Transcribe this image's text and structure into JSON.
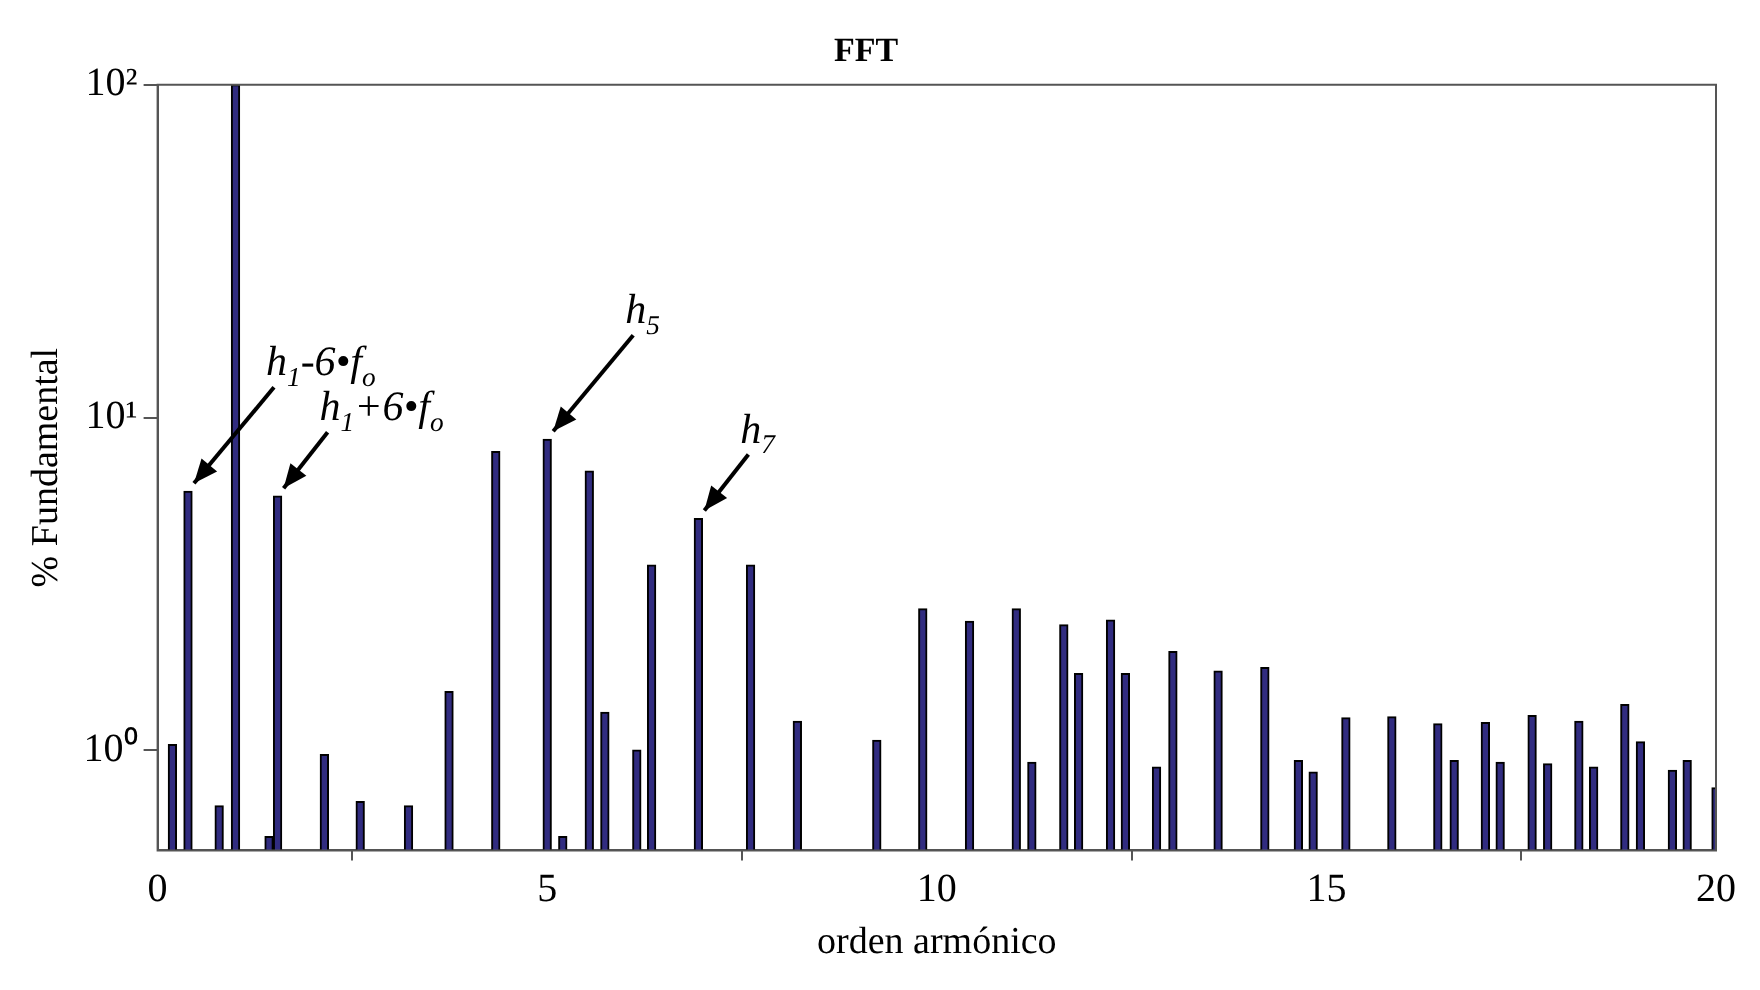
{
  "chart_data": {
    "type": "bar",
    "title": "FFT",
    "xlabel": "orden armónico",
    "ylabel": "% Fundamental",
    "x": [
      0.19,
      0.39,
      0.79,
      1.0,
      1.43,
      1.54,
      2.14,
      2.6,
      3.22,
      3.74,
      4.34,
      5.0,
      5.2,
      5.54,
      5.74,
      6.15,
      6.34,
      6.94,
      7.61,
      8.21,
      9.23,
      9.82,
      10.42,
      11.02,
      11.22,
      11.63,
      11.82,
      12.23,
      12.42,
      12.82,
      13.03,
      13.61,
      14.21,
      14.64,
      14.83,
      15.25,
      15.84,
      16.43,
      16.64,
      17.04,
      17.23,
      17.64,
      17.84,
      18.24,
      18.43,
      18.83,
      19.03,
      19.44,
      19.63,
      20
    ],
    "values": [
      1.04,
      6.0,
      0.68,
      100,
      0.55,
      5.8,
      0.97,
      0.7,
      0.68,
      1.5,
      7.9,
      8.6,
      0.55,
      6.9,
      1.3,
      1.0,
      3.6,
      4.97,
      3.6,
      1.22,
      1.07,
      2.66,
      2.44,
      2.66,
      0.92,
      2.38,
      1.7,
      2.46,
      1.7,
      0.89,
      1.98,
      1.73,
      1.77,
      0.93,
      0.86,
      1.25,
      1.26,
      1.2,
      0.93,
      1.21,
      0.92,
      1.27,
      0.91,
      1.22,
      0.89,
      1.37,
      1.06,
      0.87,
      0.93,
      0.77
    ],
    "color": "#312c80",
    "log": true,
    "grid": false,
    "xlim": [
      0,
      20
    ],
    "xticks": [
      0,
      5,
      10,
      15,
      20
    ],
    "ylim": [
      0.5,
      100
    ],
    "yticks": [
      {
        "value": 1,
        "label": "10⁰"
      },
      {
        "value": 10,
        "label": "10¹"
      },
      {
        "value": 100,
        "label": "10²"
      }
    ],
    "annotations": [
      {
        "text": "h$_{1}$-6•f$_{o}$",
        "x": 0.39,
        "y": 6.0
      },
      {
        "text": "h$_{1}$+6•f$_{o}$",
        "x": 1.54,
        "y": 5.8
      },
      {
        "text": "h$_{5}$",
        "x": 5.0,
        "y": 8.6
      },
      {
        "text": "h$_{7}$",
        "x": 6.94,
        "y": 4.97
      }
    ]
  }
}
